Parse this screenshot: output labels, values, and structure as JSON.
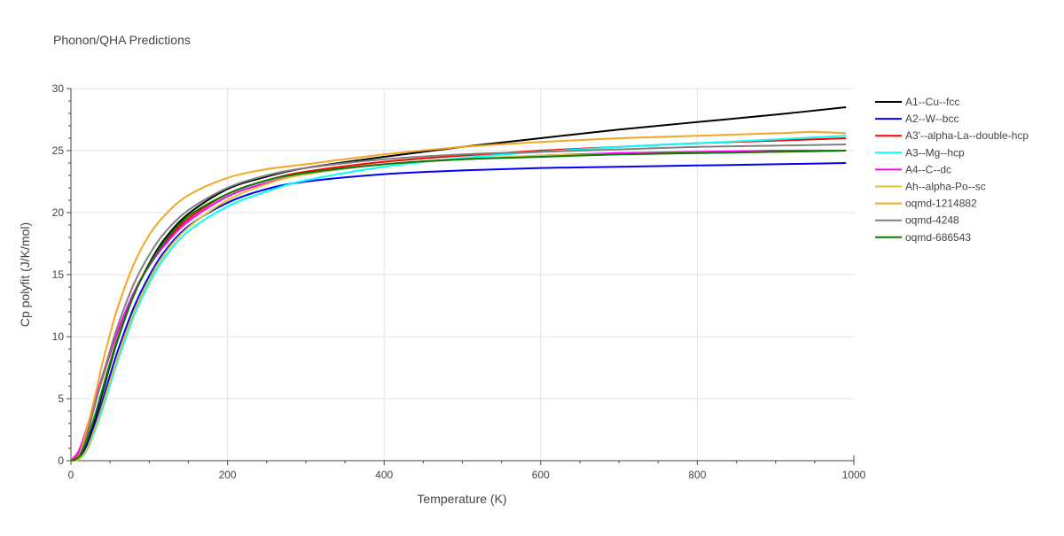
{
  "chart_data": {
    "type": "line",
    "title": "Phonon/QHA Predictions",
    "xlabel": "Temperature (K)",
    "ylabel": "Cp polyfit (J/K/mol)",
    "xlim": [
      0,
      1000
    ],
    "ylim": [
      0,
      30
    ],
    "xticks": [
      0,
      200,
      400,
      600,
      800,
      1000
    ],
    "yticks": [
      0,
      5,
      10,
      15,
      20,
      25,
      30
    ],
    "grid": true,
    "legend_position": "right",
    "series": [
      {
        "name": "A1--Cu--fcc",
        "color": "#000000",
        "x": [
          0,
          10,
          20,
          30,
          40,
          50,
          60,
          80,
          100,
          120,
          150,
          200,
          250,
          300,
          400,
          500,
          600,
          700,
          800,
          900,
          990
        ],
        "y": [
          0,
          0.2,
          1.3,
          3.2,
          5.4,
          7.7,
          9.8,
          13.3,
          15.9,
          17.9,
          19.9,
          21.9,
          22.9,
          23.6,
          24.5,
          25.3,
          26.0,
          26.7,
          27.3,
          27.9,
          28.5
        ]
      },
      {
        "name": "A2--W--bcc",
        "color": "#0000ff",
        "x": [
          0,
          10,
          20,
          30,
          40,
          50,
          60,
          80,
          100,
          120,
          150,
          200,
          250,
          300,
          400,
          500,
          600,
          700,
          800,
          900,
          990
        ],
        "y": [
          0,
          0.2,
          1.1,
          2.8,
          4.8,
          6.9,
          8.9,
          12.3,
          14.9,
          16.9,
          18.9,
          20.8,
          21.9,
          22.5,
          23.1,
          23.4,
          23.6,
          23.7,
          23.8,
          23.9,
          24.0
        ]
      },
      {
        "name": "A3'--alpha-La--double-hcp",
        "color": "#ff0000",
        "x": [
          0,
          10,
          20,
          30,
          40,
          50,
          60,
          80,
          100,
          120,
          150,
          200,
          250,
          300,
          400,
          500,
          600,
          700,
          800,
          900,
          990
        ],
        "y": [
          0,
          0.5,
          2.2,
          4.4,
          6.6,
          8.6,
          10.4,
          13.5,
          15.8,
          17.6,
          19.5,
          21.5,
          22.6,
          23.3,
          24.1,
          24.6,
          25.0,
          25.3,
          25.6,
          25.8,
          26.0
        ]
      },
      {
        "name": "A3--Mg--hcp",
        "color": "#00ffff",
        "x": [
          0,
          10,
          20,
          30,
          40,
          50,
          60,
          80,
          100,
          120,
          150,
          200,
          250,
          300,
          400,
          500,
          600,
          700,
          800,
          900,
          990
        ],
        "y": [
          0,
          0.1,
          0.8,
          2.3,
          4.1,
          6.1,
          8.1,
          11.6,
          14.3,
          16.4,
          18.5,
          20.5,
          21.7,
          22.6,
          23.7,
          24.4,
          24.9,
          25.3,
          25.6,
          25.9,
          26.2
        ]
      },
      {
        "name": "A4--C--dc",
        "color": "#ff00ff",
        "x": [
          0,
          10,
          20,
          30,
          40,
          50,
          60,
          80,
          100,
          120,
          150,
          200,
          250,
          300,
          400,
          500,
          600,
          700,
          800,
          900,
          990
        ],
        "y": [
          0,
          0.8,
          2.6,
          4.7,
          6.8,
          8.7,
          10.5,
          13.5,
          15.7,
          17.4,
          19.3,
          21.3,
          22.4,
          23.1,
          23.9,
          24.3,
          24.6,
          24.8,
          24.9,
          25.0,
          25.0
        ]
      },
      {
        "name": "Ah--alpha-Po--sc",
        "color": "#e6c229",
        "x": [
          0,
          10,
          20,
          30,
          40,
          50,
          60,
          80,
          100,
          120,
          150,
          200,
          250,
          300,
          400,
          500,
          600,
          700,
          800,
          900,
          990
        ],
        "y": [
          0,
          0.1,
          0.9,
          2.5,
          4.4,
          6.4,
          8.4,
          11.9,
          14.6,
          16.7,
          18.8,
          21.0,
          22.3,
          23.1,
          23.9,
          24.3,
          24.6,
          24.7,
          24.8,
          24.9,
          25.0
        ]
      },
      {
        "name": "oqmd-1214882",
        "color": "#f5a623",
        "x": [
          0,
          10,
          20,
          30,
          40,
          50,
          60,
          80,
          100,
          120,
          150,
          200,
          250,
          300,
          400,
          500,
          600,
          700,
          800,
          900,
          950,
          990
        ],
        "y": [
          0,
          0.4,
          2.5,
          5.0,
          7.8,
          10.2,
          12.4,
          15.8,
          18.2,
          19.8,
          21.4,
          22.8,
          23.5,
          23.9,
          24.7,
          25.3,
          25.7,
          26.0,
          26.2,
          26.4,
          26.5,
          26.4
        ]
      },
      {
        "name": "oqmd-4248",
        "color": "#808080",
        "x": [
          0,
          10,
          20,
          30,
          40,
          50,
          60,
          80,
          100,
          120,
          150,
          200,
          250,
          300,
          400,
          500,
          600,
          700,
          800,
          900,
          990
        ],
        "y": [
          0,
          0.3,
          1.9,
          4.3,
          6.7,
          8.9,
          10.9,
          14.2,
          16.6,
          18.4,
          20.2,
          22.0,
          23.0,
          23.6,
          24.3,
          24.7,
          24.9,
          25.1,
          25.3,
          25.4,
          25.5
        ]
      },
      {
        "name": "oqmd-686543",
        "color": "#008000",
        "x": [
          0,
          10,
          20,
          30,
          40,
          50,
          60,
          80,
          100,
          120,
          150,
          200,
          250,
          300,
          400,
          500,
          600,
          700,
          800,
          900,
          990
        ],
        "y": [
          0,
          0.3,
          1.6,
          3.5,
          5.7,
          7.9,
          9.9,
          13.3,
          15.8,
          17.7,
          19.7,
          21.5,
          22.6,
          23.2,
          23.9,
          24.3,
          24.5,
          24.7,
          24.8,
          24.9,
          25.0
        ]
      }
    ]
  }
}
